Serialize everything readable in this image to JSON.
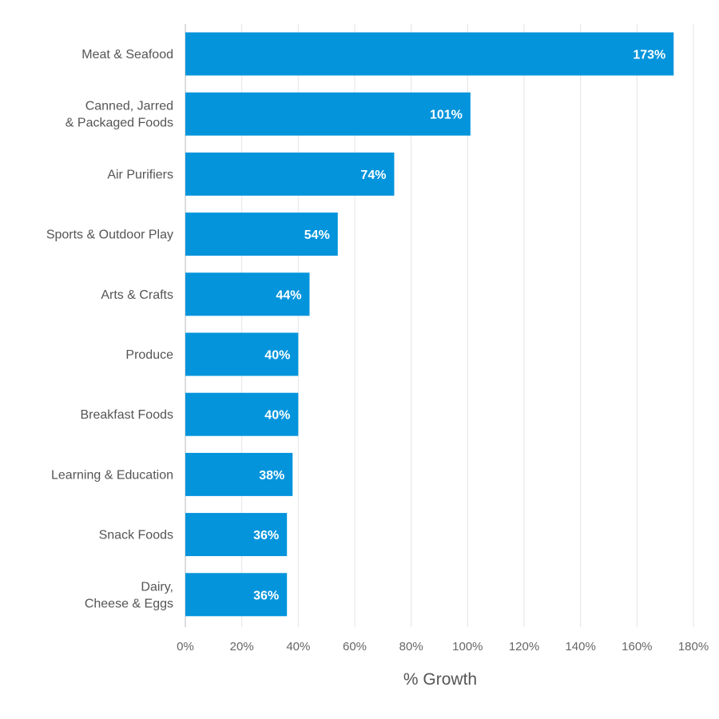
{
  "chart_data": {
    "type": "bar",
    "orientation": "horizontal",
    "categories": [
      [
        "Meat & Seafood"
      ],
      [
        "Canned, Jarred",
        "& Packaged Foods"
      ],
      [
        "Air Purifiers"
      ],
      [
        "Sports & Outdoor Play"
      ],
      [
        "Arts & Crafts"
      ],
      [
        "Produce"
      ],
      [
        "Breakfast Foods"
      ],
      [
        "Learning & Education"
      ],
      [
        "Snack Foods"
      ],
      [
        "Dairy,",
        "Cheese & Eggs"
      ]
    ],
    "values": [
      173,
      101,
      74,
      54,
      44,
      40,
      40,
      38,
      36,
      36
    ],
    "data_labels": [
      "173%",
      "101%",
      "74%",
      "54%",
      "44%",
      "40%",
      "40%",
      "38%",
      "36%",
      "36%"
    ],
    "xlabel": "% Growth",
    "xlim": [
      0,
      180
    ],
    "xticks": [
      0,
      20,
      40,
      60,
      80,
      100,
      120,
      140,
      160,
      180
    ],
    "xtick_labels": [
      "0%",
      "20%",
      "40%",
      "60%",
      "80%",
      "100%",
      "120%",
      "140%",
      "160%",
      "180%"
    ],
    "grid": true,
    "bar_color": "#0394dc",
    "value_label_color": "#ffffff"
  }
}
